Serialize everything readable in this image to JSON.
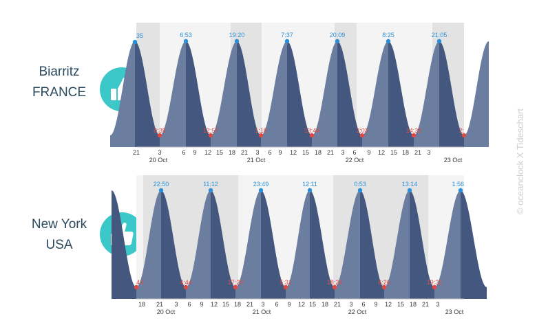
{
  "locations": [
    {
      "line1": "Biarritz",
      "line2": "FRANCE",
      "icon": "thumbs-up-icon"
    },
    {
      "line1": "New York",
      "line2": "USA",
      "icon": "thumbs-up-icon"
    }
  ],
  "credit": "© oceanclock X Tideschart",
  "colors": {
    "accent": "#3cc8c8",
    "text": "#2b4a5e",
    "tide_dark": "#44577e",
    "tide_light": "#6b7ea0",
    "high_marker": "#2a8fd8",
    "low_marker": "#e04a44",
    "night_band": "#e3e3e3",
    "day_band": "#f4f4f4"
  },
  "chart_data": [
    {
      "type": "area",
      "hours": [
        "21",
        "3",
        "6",
        "9",
        "12",
        "15",
        "18",
        "21",
        "3",
        "6",
        "9",
        "12",
        "15",
        "18",
        "21",
        "3",
        "6",
        "9",
        "12",
        "15",
        "18",
        "21",
        "3"
      ],
      "dates": [
        "20 Oct",
        "21 Oct",
        "22 Oct",
        "23 Oct"
      ],
      "extremes": [
        {
          "time": "35",
          "type": "high"
        },
        {
          "time": "0:35",
          "type": "low"
        },
        {
          "time": "6:53",
          "type": "high"
        },
        {
          "time": "12:57",
          "type": "low"
        },
        {
          "time": "19:20",
          "type": "high"
        },
        {
          "time": "1:18",
          "type": "low"
        },
        {
          "time": "7:37",
          "type": "high"
        },
        {
          "time": "13:44",
          "type": "low"
        },
        {
          "time": "20:09",
          "type": "high"
        },
        {
          "time": "2:03",
          "type": "low"
        },
        {
          "time": "8:25",
          "type": "high"
        },
        {
          "time": "14:35",
          "type": "low"
        },
        {
          "time": "21:05",
          "type": "high"
        },
        {
          "time": "2:",
          "type": "low"
        }
      ]
    },
    {
      "type": "area",
      "hours": [
        "18",
        "21",
        "3",
        "6",
        "9",
        "12",
        "15",
        "18",
        "21",
        "3",
        "6",
        "9",
        "12",
        "15",
        "18",
        "21",
        "3",
        "6",
        "9",
        "12",
        "15",
        "18",
        "21",
        "3"
      ],
      "dates": [
        "20 Oct",
        "21 Oct",
        "22 Oct",
        "23 Oct"
      ],
      "extremes": [
        {
          "time": "40",
          "type": "low"
        },
        {
          "time": "22:50",
          "type": "high"
        },
        {
          "time": "4:44",
          "type": "low"
        },
        {
          "time": "11:12",
          "type": "high"
        },
        {
          "time": "17:29",
          "type": "low"
        },
        {
          "time": "23:49",
          "type": "high"
        },
        {
          "time": "5:31",
          "type": "low"
        },
        {
          "time": "12:11",
          "type": "high"
        },
        {
          "time": "18:24",
          "type": "low"
        },
        {
          "time": "0:53",
          "type": "high"
        },
        {
          "time": "6:26",
          "type": "low"
        },
        {
          "time": "13:14",
          "type": "high"
        },
        {
          "time": "19:31",
          "type": "low"
        },
        {
          "time": "1:56",
          "type": "high"
        }
      ]
    }
  ]
}
